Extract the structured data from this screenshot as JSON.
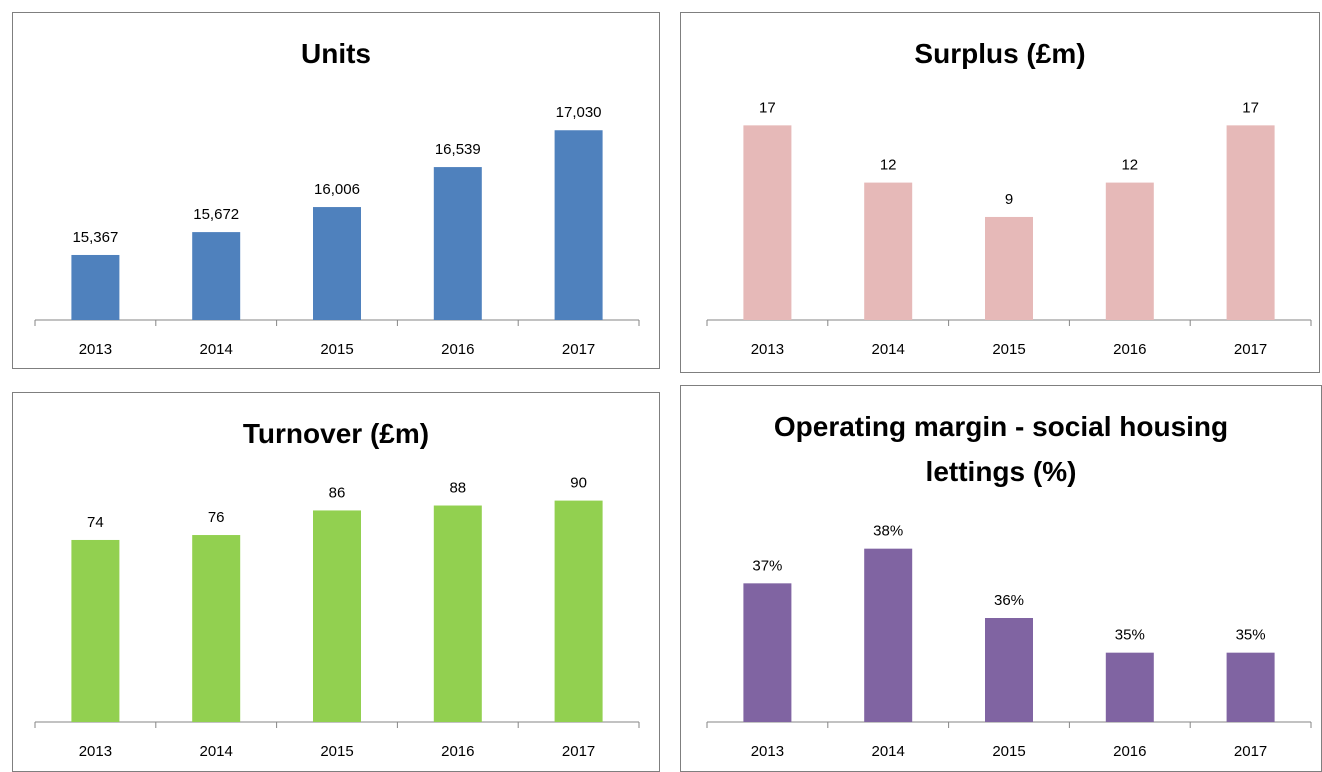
{
  "chart_data": [
    {
      "type": "bar",
      "title": "Units",
      "categories": [
        "2013",
        "2014",
        "2015",
        "2016",
        "2017"
      ],
      "values": [
        15367,
        15672,
        16006,
        16539,
        17030
      ],
      "value_labels": [
        "15,367",
        "15,672",
        "16,006",
        "16,539",
        "17,030"
      ],
      "color": "#4f81bd",
      "ylim": [
        14500,
        17500
      ]
    },
    {
      "type": "bar",
      "title": "Surplus (£m)",
      "categories": [
        "2013",
        "2014",
        "2015",
        "2016",
        "2017"
      ],
      "values": [
        17,
        12,
        9,
        12,
        17
      ],
      "color": "#e6b9b8",
      "ylim": [
        0,
        20
      ]
    },
    {
      "type": "bar",
      "title": "Turnover (£m)",
      "categories": [
        "2013",
        "2014",
        "2015",
        "2016",
        "2017"
      ],
      "values": [
        74,
        76,
        86,
        88,
        90
      ],
      "color": "#92d050",
      "ylim": [
        0,
        100
      ]
    },
    {
      "type": "bar",
      "title": "Operating margin - social housing lettings (%)",
      "categories": [
        "2013",
        "2014",
        "2015",
        "2016",
        "2017"
      ],
      "values": [
        37,
        38,
        36,
        35,
        35
      ],
      "value_labels": [
        "37%",
        "38%",
        "36%",
        "35%",
        "35%"
      ],
      "color": "#8064a2",
      "ylim": [
        33,
        39
      ]
    }
  ]
}
